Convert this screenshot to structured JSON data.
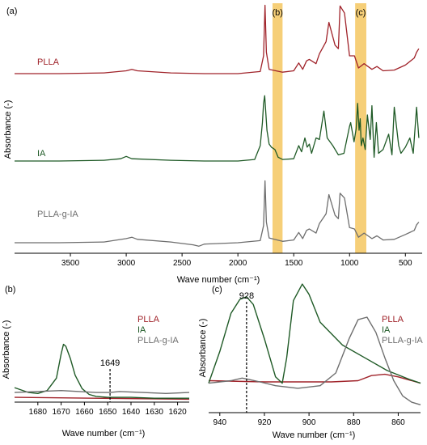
{
  "colors": {
    "PLLA": "#a0232a",
    "IA": "#1f5a26",
    "PLLA-g-IA": "#6e6e6e",
    "highlight": "#f5c760",
    "axis": "#000000"
  },
  "chart_data": [
    {
      "panel": "(a)",
      "type": "line",
      "xlabel": "Wave number (cm⁻¹)",
      "ylabel": "Absorbance (-)",
      "xlim": [
        4000,
        350
      ],
      "x_reversed": true,
      "xticks": [
        3500,
        3000,
        2500,
        2000,
        1500,
        1000,
        500
      ],
      "stacked_offsets": true,
      "highlight_bands": [
        {
          "label": "(b)",
          "range": [
            1690,
            1600
          ]
        },
        {
          "label": "(c)",
          "range": [
            950,
            850
          ]
        }
      ],
      "series": [
        {
          "name": "PLLA",
          "x": [
            4000,
            3600,
            3200,
            3000,
            2950,
            2900,
            2600,
            2300,
            2000,
            1800,
            1770,
            1757,
            1745,
            1720,
            1600,
            1500,
            1455,
            1420,
            1385,
            1360,
            1300,
            1270,
            1210,
            1185,
            1130,
            1100,
            1085,
            1045,
            1000,
            956,
            920,
            870,
            800,
            755,
            700,
            600,
            500,
            420,
            400,
            380
          ],
          "y": [
            0.0,
            0.0,
            0.01,
            0.04,
            0.06,
            0.04,
            0.01,
            0.0,
            0.0,
            0.03,
            0.25,
            0.96,
            0.3,
            0.06,
            0.02,
            0.04,
            0.15,
            0.06,
            0.18,
            0.2,
            0.14,
            0.28,
            0.45,
            0.72,
            0.4,
            0.35,
            0.95,
            0.85,
            0.25,
            0.25,
            0.08,
            0.14,
            0.06,
            0.1,
            0.04,
            0.05,
            0.12,
            0.22,
            0.3,
            0.35
          ]
        },
        {
          "name": "IA",
          "x": [
            4000,
            3600,
            3200,
            3050,
            3000,
            2950,
            2600,
            2300,
            2000,
            1850,
            1800,
            1780,
            1770,
            1760,
            1740,
            1720,
            1700,
            1669,
            1640,
            1600,
            1500,
            1455,
            1430,
            1400,
            1380,
            1360,
            1340,
            1300,
            1270,
            1230,
            1200,
            1150,
            1100,
            1050,
            1000,
            990,
            960,
            941,
            928,
            915,
            905,
            895,
            880,
            860,
            840,
            815,
            800,
            780,
            760,
            740,
            700,
            650,
            620,
            600,
            560,
            540,
            500,
            460,
            430,
            400,
            380
          ],
          "y": [
            0.0,
            0.0,
            0.01,
            0.03,
            0.06,
            0.03,
            0.01,
            0.0,
            0.0,
            0.02,
            0.2,
            0.5,
            0.75,
            0.85,
            0.4,
            0.22,
            0.18,
            0.15,
            0.05,
            0.02,
            0.03,
            0.2,
            0.12,
            0.3,
            0.18,
            0.22,
            0.1,
            0.3,
            0.28,
            0.65,
            0.3,
            0.2,
            0.08,
            0.1,
            0.45,
            0.5,
            0.25,
            0.42,
            0.75,
            0.4,
            0.55,
            0.2,
            0.3,
            0.15,
            0.6,
            0.28,
            0.72,
            0.05,
            0.5,
            0.1,
            0.15,
            0.35,
            0.08,
            0.7,
            0.2,
            0.1,
            0.18,
            0.3,
            0.1,
            0.7,
            0.3
          ]
        },
        {
          "name": "PLLA-g-IA",
          "x": [
            4000,
            3600,
            3200,
            3000,
            2950,
            2900,
            2600,
            2400,
            2350,
            2300,
            2000,
            1800,
            1770,
            1757,
            1745,
            1720,
            1600,
            1500,
            1455,
            1420,
            1385,
            1360,
            1300,
            1270,
            1210,
            1185,
            1130,
            1100,
            1085,
            1045,
            1000,
            956,
            920,
            870,
            800,
            755,
            700,
            600,
            500,
            420,
            400,
            380
          ],
          "y": [
            0.0,
            0.0,
            0.01,
            0.06,
            0.08,
            0.05,
            0.01,
            -0.03,
            -0.05,
            -0.02,
            0.0,
            0.03,
            0.25,
            0.9,
            0.3,
            0.07,
            0.02,
            0.04,
            0.15,
            0.06,
            0.18,
            0.2,
            0.14,
            0.28,
            0.42,
            0.7,
            0.4,
            0.35,
            0.72,
            0.65,
            0.22,
            0.2,
            0.08,
            0.14,
            0.06,
            0.1,
            0.04,
            0.05,
            0.12,
            0.18,
            0.26,
            0.3
          ]
        }
      ]
    },
    {
      "panel": "(b)",
      "type": "line",
      "xlabel": "Wave number (cm⁻¹)",
      "ylabel": "Absorbance (-)",
      "xlim": [
        1690,
        1615
      ],
      "x_reversed": true,
      "xticks": [
        1680,
        1670,
        1660,
        1650,
        1640,
        1630,
        1620
      ],
      "ylim": [
        0,
        1
      ],
      "annotations": [
        {
          "text": "1649",
          "x": 1649
        }
      ],
      "series": [
        {
          "name": "PLLA",
          "x": [
            1690,
            1615
          ],
          "y": [
            0.05,
            0.03
          ]
        },
        {
          "name": "IA",
          "x": [
            1690,
            1684,
            1680,
            1676,
            1672,
            1670,
            1669,
            1668,
            1666,
            1664,
            1661,
            1658,
            1655,
            1650,
            1640,
            1630,
            1620,
            1615
          ],
          "y": [
            0.15,
            0.1,
            0.09,
            0.12,
            0.25,
            0.5,
            0.6,
            0.58,
            0.45,
            0.28,
            0.14,
            0.08,
            0.06,
            0.05,
            0.05,
            0.04,
            0.04,
            0.04
          ]
        },
        {
          "name": "PLLA-g-IA",
          "x": [
            1690,
            1670,
            1655,
            1649,
            1645,
            1635,
            1625,
            1615
          ],
          "y": [
            0.1,
            0.12,
            0.1,
            0.1,
            0.11,
            0.1,
            0.09,
            0.1
          ]
        }
      ]
    },
    {
      "panel": "(c)",
      "type": "line",
      "xlabel": "Wave number (cm⁻¹)",
      "ylabel": "Absorbance (-)",
      "xlim": [
        945,
        850
      ],
      "x_reversed": true,
      "xticks": [
        940,
        920,
        900,
        880,
        860
      ],
      "ylim": [
        0,
        1
      ],
      "annotations": [
        {
          "text": "928",
          "x": 928
        }
      ],
      "series": [
        {
          "name": "PLLA",
          "x": [
            945,
            920,
            890,
            878,
            872,
            866,
            860,
            850
          ],
          "y": [
            0.22,
            0.21,
            0.21,
            0.22,
            0.26,
            0.27,
            0.25,
            0.2
          ]
        },
        {
          "name": "IA",
          "x": [
            945,
            940,
            935,
            931,
            928,
            925,
            920,
            915,
            912,
            910,
            907,
            903,
            900,
            895,
            885,
            875,
            865,
            855,
            850
          ],
          "y": [
            0.2,
            0.45,
            0.75,
            0.86,
            0.88,
            0.82,
            0.55,
            0.25,
            0.2,
            0.4,
            0.85,
            0.98,
            0.9,
            0.68,
            0.5,
            0.4,
            0.3,
            0.23,
            0.2
          ]
        },
        {
          "name": "PLLA-g-IA",
          "x": [
            945,
            935,
            930,
            927,
            922,
            915,
            905,
            895,
            888,
            882,
            878,
            874,
            870,
            866,
            862,
            858,
            854,
            850
          ],
          "y": [
            0.2,
            0.22,
            0.24,
            0.23,
            0.21,
            0.18,
            0.16,
            0.18,
            0.28,
            0.55,
            0.7,
            0.72,
            0.6,
            0.4,
            0.22,
            0.1,
            0.05,
            0.03
          ]
        }
      ]
    }
  ]
}
